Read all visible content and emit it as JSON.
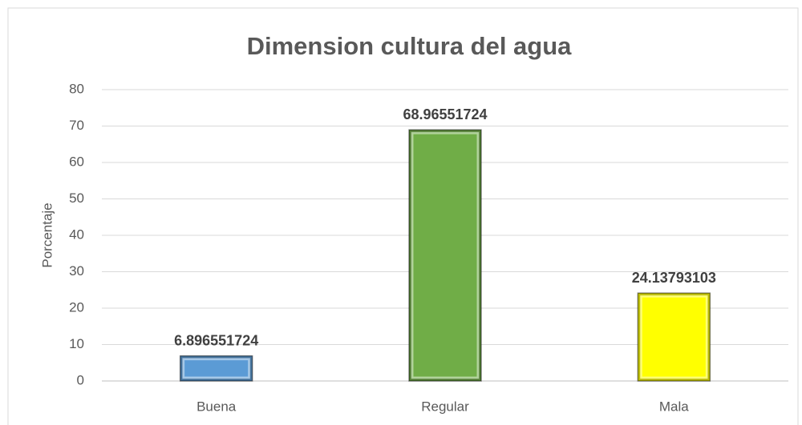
{
  "chart_data": {
    "type": "bar",
    "title": "Dimension cultura del agua",
    "y_label": "Porcentaje",
    "categories": [
      "Buena",
      "Regular",
      "Mala"
    ],
    "values": [
      6.896551724,
      68.96551724,
      24.13793103
    ],
    "colors": [
      "#5b9bd5",
      "#70ad47",
      "#ffff00"
    ],
    "ylim": [
      0,
      80
    ],
    "yticks": [
      0,
      10,
      20,
      30,
      40,
      50,
      60,
      70,
      80
    ],
    "grid": true
  }
}
